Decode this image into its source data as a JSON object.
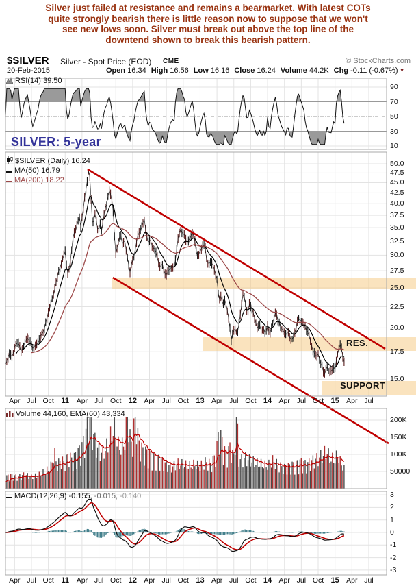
{
  "commentary": {
    "lines": [
      "Silver just failed at resistance and remains a bearmarket. With latest COTs",
      "quite strongly bearish there is little reason now to suppose that we won't",
      "see new lows soon. Silver must break out above the top line of the",
      "downtend shown to break this bearish pattern."
    ]
  },
  "header": {
    "symbol": "$SILVER",
    "description": "Silver - Spot Price (EOD)",
    "exchange": "CME",
    "copyright": "© StockCharts.com",
    "date": "20-Feb-2015",
    "quote": [
      {
        "label": "Open",
        "value": "16.34"
      },
      {
        "label": "High",
        "value": "16.56"
      },
      {
        "label": "Low",
        "value": "16.16"
      },
      {
        "label": "Close",
        "value": "16.24"
      },
      {
        "label": "Volume",
        "value": "44.2K"
      },
      {
        "label": "Chg",
        "value": "-0.11 (-0.67%)"
      }
    ]
  },
  "panels": {
    "rsi": {
      "legend": "RSI(14) 39.50",
      "ticks": [
        "90",
        "70",
        "50",
        "30",
        "10"
      ]
    },
    "price": {
      "watermark": "SILVER: 5-year",
      "legend_symbol": "$SILVER (Daily) 16.24",
      "legend_ma50": "MA(50) 16.79",
      "legend_ma200": "MA(200) 18.22",
      "res_label": "RES.",
      "support_label": "SUPPORT",
      "ticks": [
        "50.0",
        "47.5",
        "45.0",
        "42.5",
        "40.0",
        "37.5",
        "35.0",
        "32.5",
        "30.0",
        "27.5",
        "25.0",
        "22.5",
        "20.0",
        "17.5",
        "15.0"
      ]
    },
    "volume": {
      "legend": "Volume 44,160, EMA(60) 43,334",
      "ticks": [
        "200K",
        "150K",
        "100K",
        "50000"
      ]
    },
    "macd": {
      "legend_name": "MACD(12,26,9)",
      "legend_v1": "-0.155,",
      "legend_v2": "-0.015,",
      "legend_v3": "-0.140",
      "ticks": [
        "3",
        "2",
        "1",
        "0",
        "-1",
        "-2",
        "-3"
      ]
    }
  },
  "x_axis": {
    "labels": [
      [
        "Apr",
        2010.25
      ],
      [
        "Jul",
        2010.5
      ],
      [
        "Oct",
        2010.75
      ],
      [
        "11",
        2011
      ],
      [
        "Apr",
        2011.25
      ],
      [
        "Jul",
        2011.5
      ],
      [
        "Oct",
        2011.75
      ],
      [
        "12",
        2012
      ],
      [
        "Apr",
        2012.25
      ],
      [
        "Jul",
        2012.5
      ],
      [
        "Oct",
        2012.75
      ],
      [
        "13",
        2013
      ],
      [
        "Apr",
        2013.25
      ],
      [
        "Jul",
        2013.5
      ],
      [
        "Oct",
        2013.75
      ],
      [
        "14",
        2014
      ],
      [
        "Apr",
        2014.25
      ],
      [
        "Jul",
        2014.5
      ],
      [
        "Oct",
        2014.75
      ],
      [
        "15",
        2015
      ],
      [
        "Apr",
        2015.25
      ],
      [
        "Jul",
        2015.5
      ]
    ]
  },
  "colors": {
    "commentary": "#993311",
    "trendline_red": "#C00000",
    "band_orange": "#F6C87E",
    "ma200": "#9C4848",
    "macd_hist": "#44808C",
    "volume_bar": "#AE2F2F",
    "watermark_purple": "#333399"
  },
  "chart_data": [
    {
      "type": "line",
      "panel": "RSI",
      "label": "RSI(14)",
      "last_value": 39.5,
      "ylim": [
        10,
        90
      ],
      "reference_lines": [
        70,
        50,
        30
      ],
      "shaded_above": 70,
      "shaded_below": 30
    },
    {
      "type": "candlestick",
      "panel": "price",
      "symbol": "$SILVER",
      "timeframe": "Daily",
      "last_close": 16.24,
      "ma50": 16.79,
      "ma200": 18.22,
      "yscale": "log",
      "ylim": [
        13.7,
        52
      ],
      "xlim_years": [
        2010.12,
        2015.77
      ],
      "weekly_close_anchors": [
        [
          2010.12,
          16.3
        ],
        [
          2010.17,
          17.3
        ],
        [
          2010.22,
          17.0
        ],
        [
          2010.25,
          18.0
        ],
        [
          2010.3,
          18.5
        ],
        [
          2010.35,
          17.5
        ],
        [
          2010.4,
          18.4
        ],
        [
          2010.44,
          18.9
        ],
        [
          2010.48,
          18.5
        ],
        [
          2010.52,
          17.8
        ],
        [
          2010.56,
          18.1
        ],
        [
          2010.6,
          18.4
        ],
        [
          2010.64,
          19.2
        ],
        [
          2010.68,
          19.6
        ],
        [
          2010.72,
          20.8
        ],
        [
          2010.76,
          22.1
        ],
        [
          2010.8,
          23.3
        ],
        [
          2010.84,
          24.6
        ],
        [
          2010.87,
          25.9
        ],
        [
          2010.9,
          27.3
        ],
        [
          2010.93,
          28.2
        ],
        [
          2010.96,
          29.3
        ],
        [
          2011.0,
          30.7
        ],
        [
          2011.03,
          26.9
        ],
        [
          2011.06,
          27.8
        ],
        [
          2011.09,
          30.2
        ],
        [
          2011.12,
          33.6
        ],
        [
          2011.15,
          34.3
        ],
        [
          2011.18,
          35.8
        ],
        [
          2011.21,
          37.4
        ],
        [
          2011.23,
          35.1
        ],
        [
          2011.26,
          37.9
        ],
        [
          2011.29,
          41.6
        ],
        [
          2011.32,
          44.6
        ],
        [
          2011.35,
          48.4
        ],
        [
          2011.37,
          46.1
        ],
        [
          2011.39,
          38.8
        ],
        [
          2011.41,
          34.7
        ],
        [
          2011.43,
          37.2
        ],
        [
          2011.45,
          38.1
        ],
        [
          2011.47,
          35.2
        ],
        [
          2011.49,
          34.4
        ],
        [
          2011.52,
          35.8
        ],
        [
          2011.54,
          34.1
        ],
        [
          2011.56,
          36.2
        ],
        [
          2011.59,
          38.9
        ],
        [
          2011.62,
          40.0
        ],
        [
          2011.64,
          42.3
        ],
        [
          2011.66,
          43.3
        ],
        [
          2011.68,
          41.5
        ],
        [
          2011.7,
          40.2
        ],
        [
          2011.72,
          37.0
        ],
        [
          2011.74,
          29.9
        ],
        [
          2011.76,
          30.8
        ],
        [
          2011.79,
          32.4
        ],
        [
          2011.82,
          33.9
        ],
        [
          2011.85,
          31.7
        ],
        [
          2011.88,
          32.9
        ],
        [
          2011.9,
          31.2
        ],
        [
          2011.93,
          29.1
        ],
        [
          2011.96,
          27.2
        ],
        [
          2011.99,
          28.9
        ],
        [
          2012.02,
          29.8
        ],
        [
          2012.05,
          31.8
        ],
        [
          2012.08,
          33.7
        ],
        [
          2012.11,
          34.3
        ],
        [
          2012.14,
          35.4
        ],
        [
          2012.17,
          36.9
        ],
        [
          2012.2,
          34.0
        ],
        [
          2012.23,
          32.2
        ],
        [
          2012.26,
          32.9
        ],
        [
          2012.29,
          31.5
        ],
        [
          2012.32,
          31.1
        ],
        [
          2012.35,
          30.4
        ],
        [
          2012.38,
          28.9
        ],
        [
          2012.41,
          28.0
        ],
        [
          2012.44,
          28.7
        ],
        [
          2012.47,
          27.1
        ],
        [
          2012.5,
          26.9
        ],
        [
          2012.53,
          27.5
        ],
        [
          2012.56,
          27.9
        ],
        [
          2012.59,
          28.1
        ],
        [
          2012.62,
          28.0
        ],
        [
          2012.65,
          30.6
        ],
        [
          2012.68,
          33.7
        ],
        [
          2012.71,
          34.6
        ],
        [
          2012.74,
          33.9
        ],
        [
          2012.77,
          33.6
        ],
        [
          2012.8,
          32.1
        ],
        [
          2012.83,
          32.6
        ],
        [
          2012.86,
          33.3
        ],
        [
          2012.89,
          34.1
        ],
        [
          2012.92,
          32.7
        ],
        [
          2012.95,
          29.9
        ],
        [
          2012.98,
          30.2
        ],
        [
          2013.01,
          30.9
        ],
        [
          2013.04,
          31.6
        ],
        [
          2013.07,
          31.9
        ],
        [
          2013.1,
          28.9
        ],
        [
          2013.13,
          28.6
        ],
        [
          2013.16,
          28.9
        ],
        [
          2013.19,
          28.4
        ],
        [
          2013.22,
          27.3
        ],
        [
          2013.25,
          26.2
        ],
        [
          2013.28,
          23.2
        ],
        [
          2013.31,
          23.9
        ],
        [
          2013.34,
          22.6
        ],
        [
          2013.37,
          23.5
        ],
        [
          2013.4,
          22.2
        ],
        [
          2013.43,
          20.8
        ],
        [
          2013.46,
          18.6
        ],
        [
          2013.49,
          19.6
        ],
        [
          2013.52,
          19.9
        ],
        [
          2013.55,
          19.3
        ],
        [
          2013.58,
          20.6
        ],
        [
          2013.61,
          22.4
        ],
        [
          2013.64,
          24.4
        ],
        [
          2013.67,
          23.1
        ],
        [
          2013.7,
          21.6
        ],
        [
          2013.73,
          22.8
        ],
        [
          2013.76,
          22.4
        ],
        [
          2013.79,
          21.7
        ],
        [
          2013.82,
          20.7
        ],
        [
          2013.85,
          19.9
        ],
        [
          2013.88,
          20.4
        ],
        [
          2013.91,
          19.6
        ],
        [
          2013.94,
          19.9
        ],
        [
          2013.97,
          19.3
        ],
        [
          2014.0,
          20.2
        ],
        [
          2014.03,
          19.2
        ],
        [
          2014.06,
          20.1
        ],
        [
          2014.09,
          20.9
        ],
        [
          2014.12,
          21.9
        ],
        [
          2014.15,
          20.9
        ],
        [
          2014.18,
          20.4
        ],
        [
          2014.21,
          19.9
        ],
        [
          2014.24,
          19.6
        ],
        [
          2014.27,
          19.2
        ],
        [
          2014.3,
          19.6
        ],
        [
          2014.33,
          18.9
        ],
        [
          2014.36,
          18.7
        ],
        [
          2014.39,
          19.1
        ],
        [
          2014.42,
          19.8
        ],
        [
          2014.45,
          21.1
        ],
        [
          2014.48,
          20.9
        ],
        [
          2014.51,
          20.7
        ],
        [
          2014.54,
          20.5
        ],
        [
          2014.57,
          19.8
        ],
        [
          2014.6,
          19.5
        ],
        [
          2014.63,
          18.8
        ],
        [
          2014.66,
          17.8
        ],
        [
          2014.69,
          17.4
        ],
        [
          2014.72,
          17.0
        ],
        [
          2014.75,
          17.3
        ],
        [
          2014.78,
          16.5
        ],
        [
          2014.81,
          16.1
        ],
        [
          2014.84,
          15.3
        ],
        [
          2014.86,
          15.8
        ],
        [
          2014.89,
          16.2
        ],
        [
          2014.91,
          15.5
        ],
        [
          2014.93,
          15.8
        ],
        [
          2014.95,
          15.6
        ],
        [
          2014.97,
          16.0
        ],
        [
          2015.0,
          15.9
        ],
        [
          2015.03,
          17.1
        ],
        [
          2015.06,
          17.9
        ],
        [
          2015.08,
          18.3
        ],
        [
          2015.1,
          17.7
        ],
        [
          2015.12,
          16.8
        ],
        [
          2015.14,
          16.4
        ],
        [
          2015.15,
          16.24
        ]
      ],
      "annotations": {
        "trendlines": [
          {
            "name": "downtrend-top",
            "from": [
              2011.33,
              48.4
            ],
            "to": [
              2015.74,
              17.8
            ]
          },
          {
            "name": "downtrend-bottom",
            "from": [
              2011.71,
              26.5
            ],
            "to": [
              2015.79,
              10.5
            ]
          }
        ],
        "bands": [
          {
            "name": "overhead-resistance",
            "price_low": 25.0,
            "price_high": 26.4,
            "starts": 2011.69
          },
          {
            "name": "resistance",
            "price_low": 17.7,
            "price_high": 18.8,
            "starts": 2013.05
          },
          {
            "name": "support",
            "price_low": 13.7,
            "price_high": 14.9,
            "starts": 2014.8
          }
        ]
      }
    },
    {
      "type": "bar",
      "panel": "volume",
      "last": 44160,
      "ema60": 43334,
      "unit": "thousands",
      "ylim": [
        0,
        230
      ],
      "points": [
        [
          2010.12,
          30
        ],
        [
          2010.2,
          34
        ],
        [
          2010.3,
          30
        ],
        [
          2010.4,
          36
        ],
        [
          2010.5,
          30
        ],
        [
          2010.6,
          34
        ],
        [
          2010.7,
          44
        ],
        [
          2010.78,
          52
        ],
        [
          2010.84,
          92
        ],
        [
          2010.88,
          58
        ],
        [
          2010.93,
          72
        ],
        [
          2011.0,
          66
        ],
        [
          2011.05,
          88
        ],
        [
          2011.1,
          72
        ],
        [
          2011.15,
          84
        ],
        [
          2011.2,
          95
        ],
        [
          2011.25,
          108
        ],
        [
          2011.3,
          135
        ],
        [
          2011.36,
          188
        ],
        [
          2011.4,
          150
        ],
        [
          2011.45,
          115
        ],
        [
          2011.5,
          98
        ],
        [
          2011.55,
          92
        ],
        [
          2011.6,
          102
        ],
        [
          2011.65,
          118
        ],
        [
          2011.7,
          148
        ],
        [
          2011.74,
          160
        ],
        [
          2011.78,
          112
        ],
        [
          2011.83,
          104
        ],
        [
          2011.88,
          118
        ],
        [
          2011.92,
          192
        ],
        [
          2011.96,
          128
        ],
        [
          2012.0,
          112
        ],
        [
          2012.04,
          196
        ],
        [
          2012.08,
          126
        ],
        [
          2012.12,
          104
        ],
        [
          2012.17,
          96
        ],
        [
          2012.25,
          88
        ],
        [
          2012.33,
          80
        ],
        [
          2012.42,
          72
        ],
        [
          2012.5,
          62
        ],
        [
          2012.58,
          56
        ],
        [
          2012.67,
          64
        ],
        [
          2012.75,
          62
        ],
        [
          2012.83,
          58
        ],
        [
          2012.92,
          62
        ],
        [
          2013.0,
          58
        ],
        [
          2013.08,
          68
        ],
        [
          2013.17,
          62
        ],
        [
          2013.24,
          92
        ],
        [
          2013.28,
          148
        ],
        [
          2013.33,
          118
        ],
        [
          2013.38,
          88
        ],
        [
          2013.46,
          108
        ],
        [
          2013.5,
          78
        ],
        [
          2013.54,
          196
        ],
        [
          2013.58,
          72
        ],
        [
          2013.67,
          78
        ],
        [
          2013.75,
          72
        ],
        [
          2013.83,
          66
        ],
        [
          2013.92,
          62
        ],
        [
          2014.0,
          58
        ],
        [
          2014.08,
          72
        ],
        [
          2014.17,
          58
        ],
        [
          2014.25,
          54
        ],
        [
          2014.33,
          58
        ],
        [
          2014.42,
          64
        ],
        [
          2014.5,
          68
        ],
        [
          2014.58,
          62
        ],
        [
          2014.67,
          72
        ],
        [
          2014.75,
          78
        ],
        [
          2014.83,
          88
        ],
        [
          2014.88,
          96
        ],
        [
          2014.92,
          78
        ],
        [
          2015.0,
          74
        ],
        [
          2015.04,
          88
        ],
        [
          2015.08,
          68
        ],
        [
          2015.12,
          56
        ],
        [
          2015.15,
          44
        ]
      ]
    },
    {
      "type": "line",
      "panel": "MACD",
      "params": "12,26,9",
      "last_values": [
        -0.155,
        -0.015,
        -0.14
      ],
      "ylim": [
        -3,
        3
      ]
    }
  ]
}
